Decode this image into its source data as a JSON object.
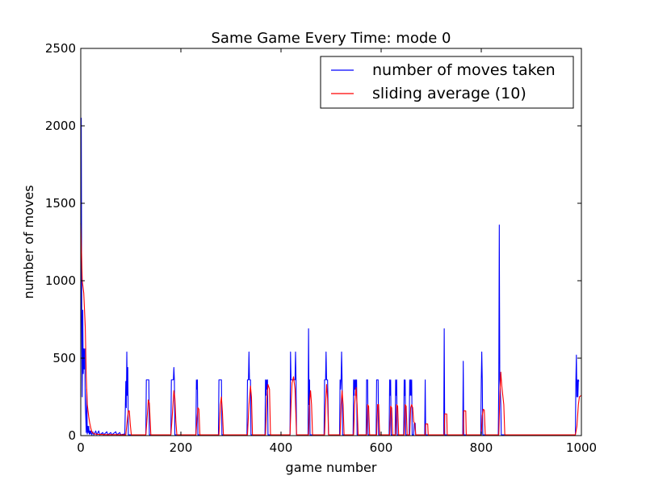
{
  "chart_data": {
    "type": "line",
    "title": "Same Game Every Time: mode 0",
    "xlabel": "game number",
    "ylabel": "number of moves",
    "xlim": [
      0,
      1000
    ],
    "ylim": [
      0,
      2500
    ],
    "xticks": [
      "0",
      "200",
      "400",
      "600",
      "800",
      "1000"
    ],
    "yticks": [
      "0",
      "500",
      "1000",
      "1500",
      "2000",
      "2500"
    ],
    "grid": false,
    "legend_position": "top-right",
    "series": [
      {
        "name": "number of moves taken",
        "color": "#0000ff",
        "points": [
          [
            0,
            250
          ],
          [
            1,
            2050
          ],
          [
            2,
            800
          ],
          [
            3,
            250
          ],
          [
            4,
            810
          ],
          [
            5,
            400
          ],
          [
            6,
            560
          ],
          [
            7,
            430
          ],
          [
            8,
            560
          ],
          [
            9,
            200
          ],
          [
            10,
            120
          ],
          [
            11,
            20
          ],
          [
            12,
            300
          ],
          [
            13,
            10
          ],
          [
            14,
            60
          ],
          [
            15,
            20
          ],
          [
            16,
            60
          ],
          [
            17,
            10
          ],
          [
            18,
            30
          ],
          [
            19,
            10
          ],
          [
            20,
            30
          ],
          [
            22,
            5
          ],
          [
            24,
            25
          ],
          [
            26,
            5
          ],
          [
            30,
            30
          ],
          [
            32,
            5
          ],
          [
            36,
            30
          ],
          [
            38,
            5
          ],
          [
            44,
            20
          ],
          [
            46,
            5
          ],
          [
            52,
            25
          ],
          [
            54,
            5
          ],
          [
            60,
            20
          ],
          [
            62,
            5
          ],
          [
            70,
            25
          ],
          [
            72,
            5
          ],
          [
            78,
            20
          ],
          [
            80,
            5
          ],
          [
            86,
            10
          ],
          [
            88,
            5
          ],
          [
            90,
            350
          ],
          [
            91,
            180
          ],
          [
            92,
            540
          ],
          [
            93,
            260
          ],
          [
            94,
            440
          ],
          [
            95,
            5
          ],
          [
            130,
            5
          ],
          [
            131,
            360
          ],
          [
            136,
            360
          ],
          [
            137,
            5
          ],
          [
            180,
            5
          ],
          [
            181,
            360
          ],
          [
            185,
            360
          ],
          [
            186,
            440
          ],
          [
            187,
            360
          ],
          [
            188,
            5
          ],
          [
            230,
            5
          ],
          [
            231,
            360
          ],
          [
            232,
            300
          ],
          [
            233,
            360
          ],
          [
            234,
            5
          ],
          [
            275,
            5
          ],
          [
            276,
            360
          ],
          [
            281,
            360
          ],
          [
            282,
            5
          ],
          [
            332,
            5
          ],
          [
            333,
            360
          ],
          [
            335,
            360
          ],
          [
            336,
            540
          ],
          [
            337,
            360
          ],
          [
            339,
            360
          ],
          [
            340,
            5
          ],
          [
            368,
            5
          ],
          [
            369,
            360
          ],
          [
            370,
            260
          ],
          [
            371,
            360
          ],
          [
            372,
            300
          ],
          [
            373,
            360
          ],
          [
            374,
            5
          ],
          [
            418,
            5
          ],
          [
            419,
            540
          ],
          [
            420,
            360
          ],
          [
            428,
            360
          ],
          [
            429,
            540
          ],
          [
            430,
            360
          ],
          [
            431,
            5
          ],
          [
            454,
            5
          ],
          [
            455,
            690
          ],
          [
            456,
            200
          ],
          [
            457,
            360
          ],
          [
            458,
            5
          ],
          [
            486,
            5
          ],
          [
            487,
            360
          ],
          [
            489,
            360
          ],
          [
            490,
            540
          ],
          [
            491,
            360
          ],
          [
            493,
            360
          ],
          [
            494,
            200
          ],
          [
            495,
            5
          ],
          [
            517,
            5
          ],
          [
            518,
            360
          ],
          [
            519,
            300
          ],
          [
            520,
            360
          ],
          [
            521,
            540
          ],
          [
            522,
            360
          ],
          [
            523,
            5
          ],
          [
            544,
            5
          ],
          [
            545,
            360
          ],
          [
            546,
            260
          ],
          [
            547,
            360
          ],
          [
            548,
            300
          ],
          [
            549,
            360
          ],
          [
            550,
            260
          ],
          [
            551,
            360
          ],
          [
            552,
            5
          ],
          [
            570,
            5
          ],
          [
            571,
            360
          ],
          [
            573,
            360
          ],
          [
            574,
            5
          ],
          [
            590,
            5
          ],
          [
            591,
            360
          ],
          [
            594,
            360
          ],
          [
            595,
            5
          ],
          [
            616,
            5
          ],
          [
            617,
            360
          ],
          [
            618,
            260
          ],
          [
            619,
            360
          ],
          [
            620,
            5
          ],
          [
            628,
            5
          ],
          [
            629,
            360
          ],
          [
            630,
            260
          ],
          [
            631,
            360
          ],
          [
            632,
            5
          ],
          [
            645,
            5
          ],
          [
            646,
            360
          ],
          [
            647,
            260
          ],
          [
            648,
            360
          ],
          [
            649,
            5
          ],
          [
            656,
            5
          ],
          [
            657,
            360
          ],
          [
            658,
            260
          ],
          [
            659,
            360
          ],
          [
            660,
            260
          ],
          [
            661,
            360
          ],
          [
            662,
            5
          ],
          [
            665,
            5
          ],
          [
            666,
            80
          ],
          [
            668,
            80
          ],
          [
            669,
            5
          ],
          [
            687,
            5
          ],
          [
            688,
            360
          ],
          [
            689,
            5
          ],
          [
            725,
            5
          ],
          [
            726,
            690
          ],
          [
            727,
            5
          ],
          [
            763,
            5
          ],
          [
            764,
            480
          ],
          [
            765,
            5
          ],
          [
            799,
            5
          ],
          [
            800,
            360
          ],
          [
            801,
            540
          ],
          [
            802,
            360
          ],
          [
            803,
            5
          ],
          [
            834,
            5
          ],
          [
            835,
            360
          ],
          [
            836,
            1360
          ],
          [
            837,
            360
          ],
          [
            838,
            300
          ],
          [
            839,
            200
          ],
          [
            840,
            5
          ],
          [
            985,
            5
          ],
          [
            988,
            5
          ],
          [
            989,
            360
          ],
          [
            990,
            520
          ],
          [
            991,
            250
          ],
          [
            992,
            360
          ],
          [
            993,
            250
          ],
          [
            994,
            360
          ],
          [
            995,
            350
          ]
        ]
      },
      {
        "name": "sliding average (10)",
        "color": "#ff0000",
        "points": [
          [
            0,
            1370
          ],
          [
            3,
            1000
          ],
          [
            6,
            920
          ],
          [
            9,
            700
          ],
          [
            11,
            380
          ],
          [
            13,
            200
          ],
          [
            16,
            120
          ],
          [
            18,
            80
          ],
          [
            20,
            50
          ],
          [
            22,
            25
          ],
          [
            25,
            15
          ],
          [
            28,
            10
          ],
          [
            35,
            8
          ],
          [
            50,
            6
          ],
          [
            70,
            6
          ],
          [
            88,
            5
          ],
          [
            90,
            5
          ],
          [
            92,
            70
          ],
          [
            95,
            160
          ],
          [
            97,
            160
          ],
          [
            99,
            70
          ],
          [
            101,
            5
          ],
          [
            130,
            5
          ],
          [
            132,
            90
          ],
          [
            135,
            230
          ],
          [
            137,
            210
          ],
          [
            140,
            5
          ],
          [
            180,
            5
          ],
          [
            182,
            90
          ],
          [
            184,
            190
          ],
          [
            186,
            290
          ],
          [
            188,
            240
          ],
          [
            190,
            90
          ],
          [
            192,
            5
          ],
          [
            230,
            5
          ],
          [
            232,
            100
          ],
          [
            234,
            180
          ],
          [
            236,
            170
          ],
          [
            238,
            5
          ],
          [
            276,
            5
          ],
          [
            279,
            200
          ],
          [
            281,
            250
          ],
          [
            283,
            150
          ],
          [
            285,
            5
          ],
          [
            333,
            5
          ],
          [
            336,
            200
          ],
          [
            339,
            320
          ],
          [
            341,
            250
          ],
          [
            343,
            5
          ],
          [
            369,
            5
          ],
          [
            372,
            250
          ],
          [
            374,
            330
          ],
          [
            377,
            300
          ],
          [
            379,
            5
          ],
          [
            418,
            5
          ],
          [
            420,
            200
          ],
          [
            422,
            340
          ],
          [
            425,
            380
          ],
          [
            428,
            300
          ],
          [
            431,
            5
          ],
          [
            455,
            5
          ],
          [
            457,
            220
          ],
          [
            459,
            290
          ],
          [
            461,
            200
          ],
          [
            463,
            5
          ],
          [
            487,
            5
          ],
          [
            489,
            200
          ],
          [
            491,
            330
          ],
          [
            493,
            240
          ],
          [
            495,
            5
          ],
          [
            518,
            5
          ],
          [
            520,
            200
          ],
          [
            522,
            290
          ],
          [
            524,
            200
          ],
          [
            526,
            5
          ],
          [
            545,
            5
          ],
          [
            547,
            200
          ],
          [
            550,
            310
          ],
          [
            552,
            200
          ],
          [
            554,
            5
          ],
          [
            571,
            5
          ],
          [
            573,
            200
          ],
          [
            575,
            190
          ],
          [
            577,
            5
          ],
          [
            591,
            5
          ],
          [
            593,
            200
          ],
          [
            595,
            200
          ],
          [
            597,
            5
          ],
          [
            617,
            5
          ],
          [
            619,
            190
          ],
          [
            621,
            180
          ],
          [
            623,
            5
          ],
          [
            629,
            5
          ],
          [
            631,
            200
          ],
          [
            633,
            190
          ],
          [
            635,
            5
          ],
          [
            646,
            5
          ],
          [
            648,
            200
          ],
          [
            650,
            190
          ],
          [
            652,
            5
          ],
          [
            657,
            5
          ],
          [
            659,
            180
          ],
          [
            661,
            200
          ],
          [
            663,
            180
          ],
          [
            665,
            90
          ],
          [
            667,
            80
          ],
          [
            669,
            5
          ],
          [
            688,
            5
          ],
          [
            689,
            75
          ],
          [
            693,
            75
          ],
          [
            694,
            5
          ],
          [
            726,
            5
          ],
          [
            727,
            140
          ],
          [
            731,
            140
          ],
          [
            732,
            5
          ],
          [
            764,
            5
          ],
          [
            765,
            160
          ],
          [
            769,
            160
          ],
          [
            770,
            5
          ],
          [
            800,
            5
          ],
          [
            802,
            130
          ],
          [
            804,
            170
          ],
          [
            806,
            165
          ],
          [
            808,
            5
          ],
          [
            835,
            5
          ],
          [
            837,
            250
          ],
          [
            839,
            410
          ],
          [
            841,
            320
          ],
          [
            843,
            260
          ],
          [
            845,
            200
          ],
          [
            847,
            5
          ],
          [
            988,
            5
          ],
          [
            991,
            60
          ],
          [
            994,
            200
          ],
          [
            996,
            250
          ],
          [
            1000,
            260
          ]
        ]
      }
    ]
  }
}
